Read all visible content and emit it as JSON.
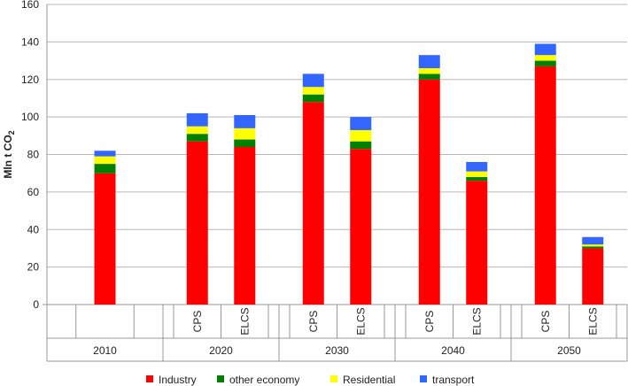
{
  "chart_data": {
    "type": "bar",
    "stacked": true,
    "ylabel": "Mln t CO",
    "ylabel_subscript": "2",
    "ylim": [
      0,
      160
    ],
    "yticks": [
      0,
      20,
      40,
      60,
      80,
      100,
      120,
      140,
      160
    ],
    "grid": "horizontal",
    "legend_position": "bottom",
    "groups": [
      {
        "year": "2010",
        "bars": [
          {
            "label": "",
            "values": [
              70,
              5,
              4,
              3
            ]
          }
        ]
      },
      {
        "year": "2020",
        "bars": [
          {
            "label": "CPS",
            "values": [
              87,
              4,
              4,
              7
            ]
          },
          {
            "label": "ELCS",
            "values": [
              84,
              4,
              6,
              7
            ]
          }
        ]
      },
      {
        "year": "2030",
        "bars": [
          {
            "label": "CPS",
            "values": [
              108,
              4,
              4,
              7
            ]
          },
          {
            "label": "ELCS",
            "values": [
              83,
              4,
              6,
              7
            ]
          }
        ]
      },
      {
        "year": "2040",
        "bars": [
          {
            "label": "CPS",
            "values": [
              120,
              3,
              3,
              7
            ]
          },
          {
            "label": "ELCS",
            "values": [
              66,
              2,
              3,
              5
            ]
          }
        ]
      },
      {
        "year": "2050",
        "bars": [
          {
            "label": "CPS",
            "values": [
              127,
              3,
              3,
              6
            ]
          },
          {
            "label": "ELCS",
            "values": [
              30,
              1,
              1,
              4
            ]
          }
        ]
      }
    ],
    "series": [
      {
        "name": "Industry",
        "color": "#ff0000"
      },
      {
        "name": "other economy",
        "color": "#008000"
      },
      {
        "name": "Residential",
        "color": "#ffff00"
      },
      {
        "name": "transport",
        "color": "#3366ff"
      }
    ]
  }
}
